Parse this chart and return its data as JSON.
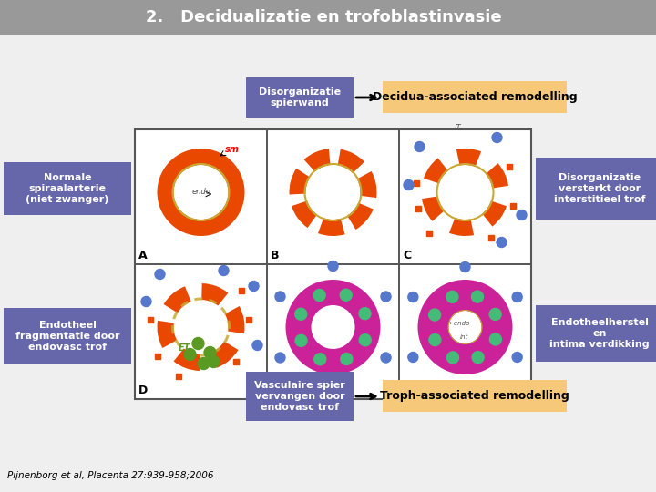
{
  "title": "2.   Decidualizatie en trofoblastinvasie",
  "title_bg": "#999999",
  "title_color": "white",
  "title_fontsize": 13,
  "bg_color": "#d8d8d8",
  "grid_bg": "white",
  "grid_border": "#555555",
  "label_left_top_text": "Normale\nspiraalarterie\n(niet zwanger)",
  "label_left_bottom_text": "Endotheel\nfragmentatie door\nendovasc trof",
  "label_right_top_text": "Disorganizatie\nversterkt door\ninterstitieel trof",
  "label_right_bottom_text": "Endotheelherstel\nen\nintima verdikking",
  "label_top_center_text": "Disorganizatie\nspierwand",
  "label_bottom_center_text": "Vasculaire spier\nvervangen door\nendovasc trof",
  "arrow_right_text": "Decidua-associated remodelling",
  "arrow_left_bottom_text": "Troph-associated remodelling",
  "label_box_color": "#6666aa",
  "label_box_text_color": "white",
  "orange_box_color": "#f5c87a",
  "orange_box_text_color": "black",
  "citation": "Pijnenborg et al, Placenta 27:939-958;2006",
  "orange_color": "#e84800",
  "gold_color": "#c8a832",
  "magenta_color": "#cc2299",
  "blue_dot_color": "#5577cc",
  "green_dot_color": "#44bb77",
  "olive_dot_color": "#5a9922"
}
